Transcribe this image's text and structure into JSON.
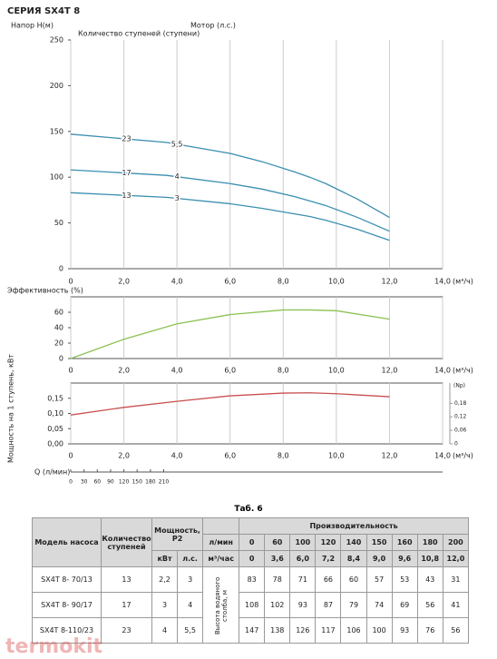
{
  "chart_data": [
    {
      "type": "line",
      "title": "СЕРИЯ SX4T 8",
      "ylabel": "Напор H(м)",
      "annotations": [
        "Количество ступеней (ступени)",
        "Мотор (л.с.)"
      ],
      "xlabel": "(м³/ч)",
      "xlim": [
        0,
        14
      ],
      "xticks": [
        0,
        {
          "value": 2,
          "label": "2,0"
        },
        {
          "value": 4,
          "label": "4,0"
        },
        {
          "value": 6,
          "label": "6,0"
        },
        {
          "value": 8,
          "label": "8,0"
        },
        {
          "value": 10,
          "label": "10,0"
        },
        {
          "value": 12,
          "label": "12,0"
        },
        {
          "value": 14,
          "label": "14,0"
        }
      ],
      "ylim": [
        0,
        250
      ],
      "yticks": [
        0,
        50,
        100,
        150,
        200,
        250
      ],
      "grid": true,
      "x": [
        0,
        3.6,
        6,
        7.2,
        8.4,
        9,
        9.6,
        10.8,
        12
      ],
      "series": [
        {
          "name": "23",
          "motor": "5,5",
          "color": "#3a8fb0",
          "values": [
            147,
            138,
            126,
            117,
            106,
            100,
            93,
            76,
            56
          ]
        },
        {
          "name": "17",
          "motor": "4",
          "color": "#3a8fb0",
          "values": [
            108,
            102,
            93,
            87,
            79,
            74,
            69,
            56,
            41
          ]
        },
        {
          "name": "13",
          "motor": "3",
          "color": "#3a8fb0",
          "values": [
            83,
            78,
            71,
            66,
            60,
            57,
            53,
            43,
            31
          ]
        }
      ]
    },
    {
      "type": "line",
      "ylabel": "Эффективность (%)",
      "xlabel": "(м³/ч)",
      "xlim": [
        0,
        14
      ],
      "xticks": [
        0,
        {
          "value": 2,
          "label": "2,0"
        },
        {
          "value": 4,
          "label": "4,0"
        },
        {
          "value": 6,
          "label": "6,0"
        },
        {
          "value": 8,
          "label": "8,0"
        },
        {
          "value": 10,
          "label": "10,0"
        },
        {
          "value": 12,
          "label": "12,0"
        },
        {
          "value": 14,
          "label": "14,0"
        }
      ],
      "ylim": [
        0,
        80
      ],
      "yticks": [
        0,
        20,
        40,
        60
      ],
      "grid": true,
      "x": [
        0,
        2,
        4,
        6,
        8,
        9,
        10,
        12
      ],
      "color": "#8cc152",
      "values": [
        0,
        25,
        45,
        57,
        63,
        63,
        62,
        51
      ]
    },
    {
      "type": "line",
      "ylabel": "Мощность на 1 ступень, кВт",
      "xlabel": "(м³/ч)",
      "xlim": [
        0,
        14
      ],
      "xticks": [
        0,
        {
          "value": 2,
          "label": "2,0"
        },
        {
          "value": 4,
          "label": "4,0"
        },
        {
          "value": 6,
          "label": "6,0"
        },
        {
          "value": 8,
          "label": "8,0"
        },
        {
          "value": 10,
          "label": "10,0"
        },
        {
          "value": 12,
          "label": "12,0"
        },
        {
          "value": 14,
          "label": "14,0"
        }
      ],
      "ylim": [
        0,
        0.2
      ],
      "yticks": [
        {
          "value": 0,
          "label": "0,00"
        },
        {
          "value": 0.05,
          "label": "0,05"
        },
        {
          "value": 0.1,
          "label": "0,10"
        },
        {
          "value": 0.15,
          "label": "0,15"
        }
      ],
      "y2label": "(Np)",
      "y2lim": [
        0,
        0.27
      ],
      "y2ticks": [
        0,
        {
          "value": 0.06,
          "label": "0,06"
        },
        {
          "value": 0.12,
          "label": "0,12"
        },
        {
          "value": 0.18,
          "label": "0,18"
        }
      ],
      "x2label": "Q (л/мин)",
      "x2lim": [
        0,
        840
      ],
      "x2ticks": [
        0,
        30,
        60,
        90,
        120,
        150,
        180,
        210
      ],
      "grid": true,
      "x": [
        0,
        2,
        4,
        6,
        8,
        9,
        10,
        12
      ],
      "color": "#c8504f",
      "values": [
        0.095,
        0.12,
        0.14,
        0.158,
        0.167,
        0.168,
        0.165,
        0.155
      ]
    }
  ],
  "table": {
    "title": "Таб. 6",
    "model": "Модель насоса",
    "stages": "Количество ступеней",
    "power": "Мощность, Р2",
    "kw": "кВт",
    "hp": "л.с.",
    "perf": "Производительность",
    "lpm_label": "л/мин",
    "lpm": [
      0,
      60,
      100,
      120,
      140,
      150,
      160,
      180,
      200
    ],
    "m3h_label": "м³/час",
    "m3h": [
      "0",
      "3,6",
      "6,0",
      "7,2",
      "8,4",
      "9,0",
      "9,6",
      "10,8",
      "12,0"
    ],
    "head_label": "Высота водяного столба, м",
    "rows": [
      {
        "model": "SX4T 8- 70/13",
        "stages": 13,
        "kw": "2,2",
        "hp": "3",
        "heads": [
          83,
          78,
          71,
          66,
          60,
          57,
          53,
          43,
          31
        ]
      },
      {
        "model": "SX4T 8- 90/17",
        "stages": 17,
        "kw": "3",
        "hp": "4",
        "heads": [
          108,
          102,
          93,
          87,
          79,
          74,
          69,
          56,
          41
        ]
      },
      {
        "model": "SX4T 8-110/23",
        "stages": 23,
        "kw": "4",
        "hp": "5,5",
        "heads": [
          147,
          138,
          126,
          117,
          106,
          100,
          93,
          76,
          56
        ]
      }
    ]
  },
  "watermark": "termokit"
}
